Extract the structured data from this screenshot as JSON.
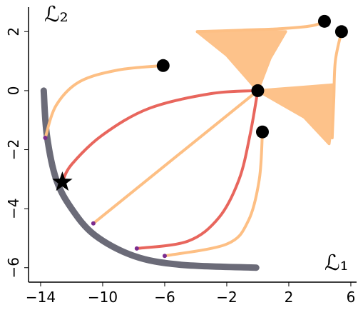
{
  "chart_data": {
    "type": "line",
    "x_label": "ℒ₁",
    "y_label": "ℒ₂",
    "xlim": [
      -14.78,
      6.37
    ],
    "ylim": [
      -6.49,
      2.83
    ],
    "xticks": [
      {
        "value": -14,
        "label": "−14"
      },
      {
        "value": -10,
        "label": "−10"
      },
      {
        "value": -6,
        "label": "−6"
      },
      {
        "value": -2,
        "label": "−2"
      },
      2,
      6
    ],
    "yticks": [
      {
        "value": -6,
        "label": "−6"
      },
      {
        "value": -4,
        "label": "−4"
      },
      {
        "value": -2,
        "label": "−2"
      },
      0,
      2
    ],
    "series": [
      {
        "color": "#6b6b78",
        "width": 9,
        "x": [
          -13.8,
          -13.6,
          -13.0,
          -12.0,
          -10.5,
          -8.0,
          -5.0,
          -0.1
        ],
        "y": [
          0,
          -1.5,
          -3.0,
          -4.0,
          -4.9,
          -5.6,
          -5.9,
          -6.0
        ]
      },
      {
        "color": "#fdbf84",
        "width": 4,
        "fill": true,
        "x": [
          0,
          -2.0,
          -3.9,
          0.0,
          1.8,
          0.8,
          0
        ],
        "y": [
          0,
          1.2,
          2.0,
          2.0,
          2.0,
          1.1,
          0
        ]
      },
      {
        "color": "#fdbf84",
        "width": 4,
        "fill": true,
        "x": [
          0,
          2.5,
          4.9,
          4.8,
          4.6,
          3.0,
          0
        ],
        "y": [
          0,
          0.1,
          0.2,
          -1.0,
          -1.8,
          -0.9,
          0
        ]
      },
      {
        "color": "#fdbf84",
        "width": 4,
        "x": [
          -3.9,
          -1.0,
          1.5,
          3.5,
          4.3
        ],
        "y": [
          2.0,
          2.05,
          2.1,
          2.2,
          2.35
        ]
      },
      {
        "color": "#fdbf84",
        "width": 4,
        "x": [
          5.4,
          5.0,
          4.9,
          4.8
        ],
        "y": [
          2.0,
          1.0,
          -0.3,
          -1.6
        ]
      },
      {
        "color": "#fdbf84",
        "width": 4,
        "x": [
          -6.1,
          -9.0,
          -11.5,
          -13.0,
          -13.7
        ],
        "y": [
          0.85,
          0.7,
          0.3,
          -0.5,
          -1.6
        ]
      },
      {
        "color": "#fdbf84",
        "width": 4,
        "x": [
          0,
          -10.6
        ],
        "y": [
          0,
          -4.5
        ]
      },
      {
        "color": "#fdbf84",
        "width": 4,
        "x": [
          0.3,
          0.1,
          -0.6,
          -2.0,
          -6.0
        ],
        "y": [
          -1.4,
          -3.0,
          -4.4,
          -5.2,
          -5.6
        ]
      },
      {
        "color": "#e8665d",
        "width": 4,
        "x": [
          0,
          -3.0,
          -7.0,
          -10.0,
          -12.0,
          -12.6
        ],
        "y": [
          0,
          -0.1,
          -0.6,
          -1.5,
          -2.5,
          -3.1
        ]
      },
      {
        "color": "#e8665d",
        "width": 4,
        "x": [
          0,
          -0.5,
          -1.2,
          -2.5,
          -4.5,
          -7.8
        ],
        "y": [
          0,
          -1.5,
          -3.0,
          -4.3,
          -5.1,
          -5.35
        ]
      }
    ],
    "end_points": {
      "color": "#7b2c8e",
      "x": [
        -13.7,
        -10.6,
        -7.8,
        -6.0
      ],
      "y": [
        -1.6,
        -4.5,
        -5.35,
        -5.6
      ]
    },
    "start_points": {
      "color": "#000000",
      "x": [
        -6.1,
        0,
        0.3,
        4.3,
        5.4
      ],
      "y": [
        0.85,
        0,
        -1.4,
        2.35,
        2.0
      ]
    },
    "optimum": {
      "color": "#000000",
      "x": -12.6,
      "y": -3.1
    }
  }
}
